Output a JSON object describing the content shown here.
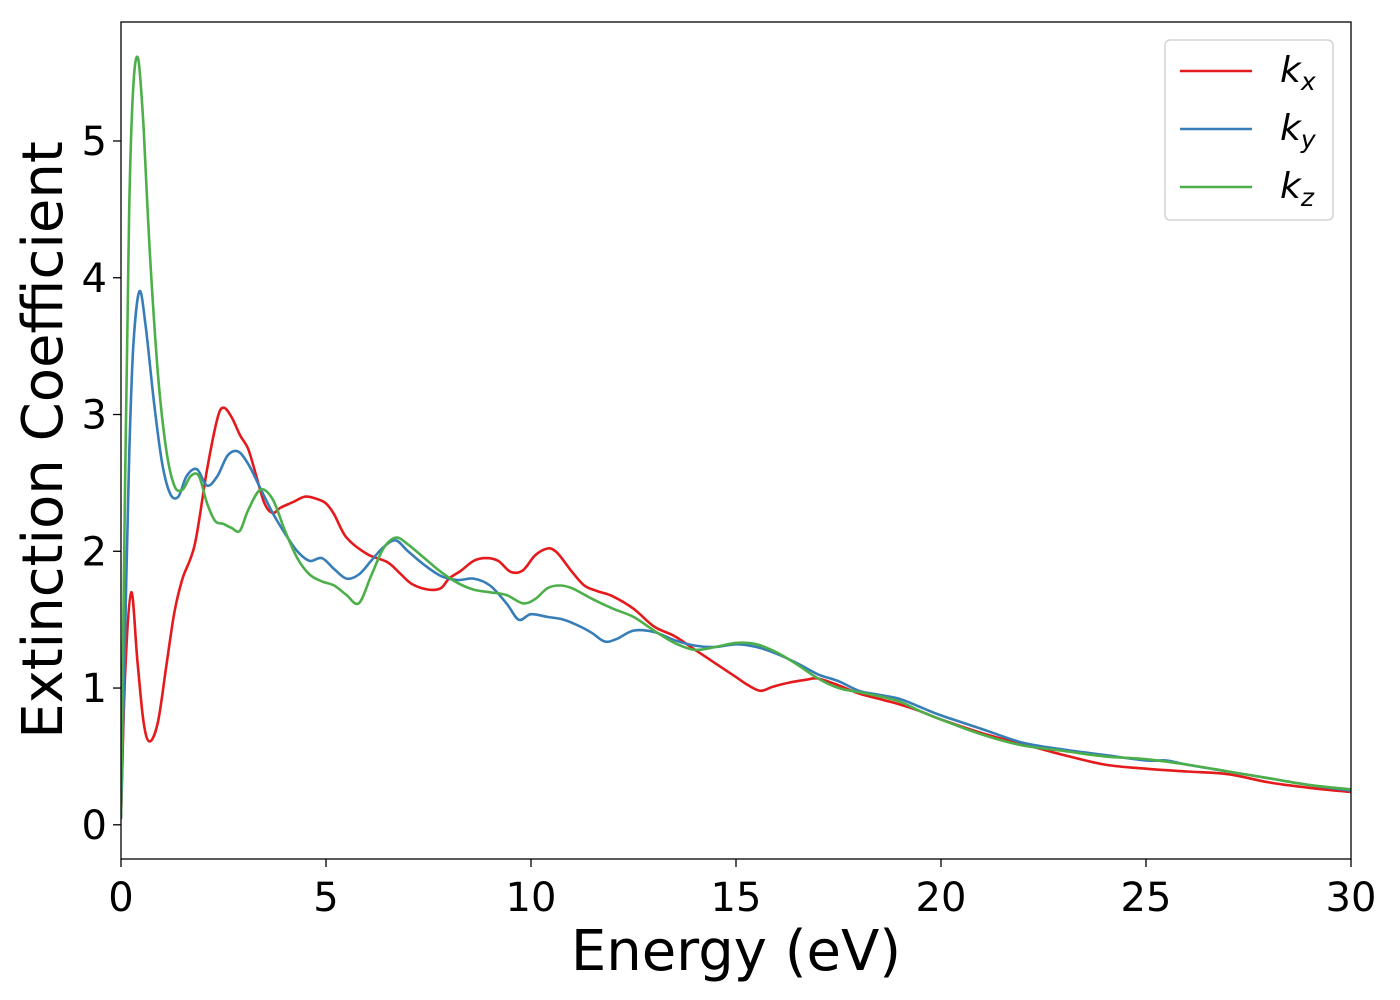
{
  "chart_data": {
    "type": "line",
    "title": "",
    "xlabel": "Energy (eV)",
    "ylabel": "Extinction Coefficient",
    "xlim": [
      0,
      30
    ],
    "ylim": [
      -0.25,
      5.87
    ],
    "xticks": [
      0,
      5,
      10,
      15,
      20,
      25,
      30
    ],
    "yticks": [
      0,
      1,
      2,
      3,
      4,
      5
    ],
    "grid": false,
    "legend_position": "top-right",
    "series": [
      {
        "name": "k",
        "subscript": "x",
        "color": "#e41a1c",
        "x": [
          0,
          0.1,
          0.25,
          0.4,
          0.55,
          0.7,
          0.9,
          1.1,
          1.3,
          1.5,
          1.8,
          2.1,
          2.35,
          2.5,
          2.7,
          2.9,
          3.1,
          3.3,
          3.5,
          3.7,
          3.9,
          4.2,
          4.5,
          4.8,
          5.0,
          5.2,
          5.5,
          6.0,
          6.5,
          6.8,
          7.1,
          7.5,
          7.8,
          8.0,
          8.3,
          8.6,
          8.9,
          9.2,
          9.5,
          9.8,
          10.1,
          10.4,
          10.6,
          10.8,
          11.0,
          11.3,
          11.6,
          12.0,
          12.5,
          13.0,
          13.5,
          14.0,
          14.5,
          15.0,
          15.3,
          15.6,
          15.9,
          16.3,
          16.7,
          17.0,
          17.5,
          18.0,
          18.5,
          19.0,
          19.5,
          20.0,
          21.0,
          22.0,
          23.0,
          24.0,
          25.0,
          26.0,
          27.0,
          28.0,
          29.0,
          30.0
        ],
        "y": [
          0.05,
          1.1,
          1.7,
          1.2,
          0.75,
          0.61,
          0.75,
          1.15,
          1.55,
          1.8,
          2.05,
          2.6,
          2.97,
          3.05,
          2.98,
          2.85,
          2.75,
          2.55,
          2.35,
          2.28,
          2.32,
          2.36,
          2.4,
          2.38,
          2.35,
          2.27,
          2.1,
          1.98,
          1.92,
          1.84,
          1.76,
          1.72,
          1.73,
          1.8,
          1.86,
          1.93,
          1.95,
          1.93,
          1.85,
          1.86,
          1.97,
          2.02,
          2.0,
          1.93,
          1.85,
          1.75,
          1.71,
          1.67,
          1.58,
          1.45,
          1.38,
          1.28,
          1.18,
          1.08,
          1.02,
          0.98,
          1.01,
          1.04,
          1.06,
          1.07,
          1.02,
          0.96,
          0.92,
          0.88,
          0.83,
          0.77,
          0.67,
          0.59,
          0.51,
          0.44,
          0.41,
          0.39,
          0.37,
          0.31,
          0.27,
          0.24
        ]
      },
      {
        "name": "k",
        "subscript": "y",
        "color": "#377eb8",
        "x": [
          0,
          0.1,
          0.2,
          0.3,
          0.45,
          0.6,
          0.8,
          1.0,
          1.2,
          1.4,
          1.6,
          1.85,
          2.1,
          2.35,
          2.6,
          2.85,
          3.1,
          3.4,
          3.7,
          4.0,
          4.3,
          4.6,
          4.9,
          5.2,
          5.5,
          5.8,
          6.1,
          6.4,
          6.7,
          7.0,
          7.4,
          7.8,
          8.2,
          8.6,
          9.0,
          9.4,
          9.7,
          10.0,
          10.4,
          10.8,
          11.2,
          11.5,
          11.8,
          12.1,
          12.5,
          13.0,
          13.5,
          14.0,
          14.5,
          15.0,
          15.5,
          16.0,
          16.5,
          17.0,
          17.5,
          18.0,
          18.5,
          19.0,
          19.5,
          20.0,
          21.0,
          22.0,
          23.0,
          24.0,
          25.0,
          25.5,
          26.0,
          27.0,
          28.0,
          29.0,
          30.0
        ],
        "y": [
          0.05,
          1.4,
          2.7,
          3.5,
          3.9,
          3.65,
          3.1,
          2.65,
          2.42,
          2.4,
          2.55,
          2.6,
          2.48,
          2.55,
          2.7,
          2.73,
          2.64,
          2.46,
          2.28,
          2.13,
          2.0,
          1.93,
          1.95,
          1.87,
          1.8,
          1.83,
          1.93,
          2.03,
          2.08,
          2.0,
          1.9,
          1.82,
          1.79,
          1.8,
          1.75,
          1.62,
          1.5,
          1.54,
          1.52,
          1.5,
          1.45,
          1.4,
          1.34,
          1.36,
          1.42,
          1.41,
          1.35,
          1.31,
          1.3,
          1.32,
          1.3,
          1.25,
          1.18,
          1.1,
          1.05,
          0.98,
          0.95,
          0.92,
          0.86,
          0.8,
          0.7,
          0.6,
          0.55,
          0.51,
          0.47,
          0.47,
          0.44,
          0.39,
          0.34,
          0.29,
          0.25
        ]
      },
      {
        "name": "k",
        "subscript": "z",
        "color": "#4daf4a",
        "x": [
          0,
          0.1,
          0.2,
          0.3,
          0.42,
          0.55,
          0.7,
          0.9,
          1.1,
          1.3,
          1.5,
          1.7,
          1.9,
          2.1,
          2.3,
          2.5,
          2.7,
          2.9,
          3.1,
          3.4,
          3.7,
          4.0,
          4.3,
          4.6,
          4.9,
          5.2,
          5.5,
          5.8,
          6.1,
          6.4,
          6.7,
          7.0,
          7.4,
          7.8,
          8.2,
          8.6,
          9.0,
          9.4,
          9.8,
          10.1,
          10.4,
          10.7,
          11.0,
          11.5,
          12.0,
          12.5,
          13.0,
          13.5,
          14.0,
          14.5,
          15.0,
          15.5,
          16.0,
          16.5,
          17.0,
          17.5,
          18.0,
          18.5,
          19.0,
          19.5,
          20.0,
          21.0,
          22.0,
          23.0,
          24.0,
          25.0,
          26.0,
          27.0,
          28.0,
          29.0,
          30.0
        ],
        "y": [
          0.05,
          2.5,
          4.5,
          5.4,
          5.6,
          5.1,
          4.2,
          3.3,
          2.75,
          2.48,
          2.45,
          2.55,
          2.55,
          2.35,
          2.22,
          2.2,
          2.17,
          2.15,
          2.3,
          2.45,
          2.38,
          2.15,
          1.95,
          1.83,
          1.78,
          1.75,
          1.68,
          1.62,
          1.82,
          2.02,
          2.1,
          2.05,
          1.95,
          1.85,
          1.77,
          1.72,
          1.7,
          1.68,
          1.62,
          1.65,
          1.73,
          1.75,
          1.73,
          1.65,
          1.58,
          1.52,
          1.42,
          1.33,
          1.28,
          1.3,
          1.33,
          1.32,
          1.26,
          1.17,
          1.07,
          1.0,
          0.97,
          0.94,
          0.9,
          0.83,
          0.77,
          0.66,
          0.58,
          0.54,
          0.5,
          0.48,
          0.44,
          0.39,
          0.34,
          0.29,
          0.26
        ]
      }
    ]
  }
}
